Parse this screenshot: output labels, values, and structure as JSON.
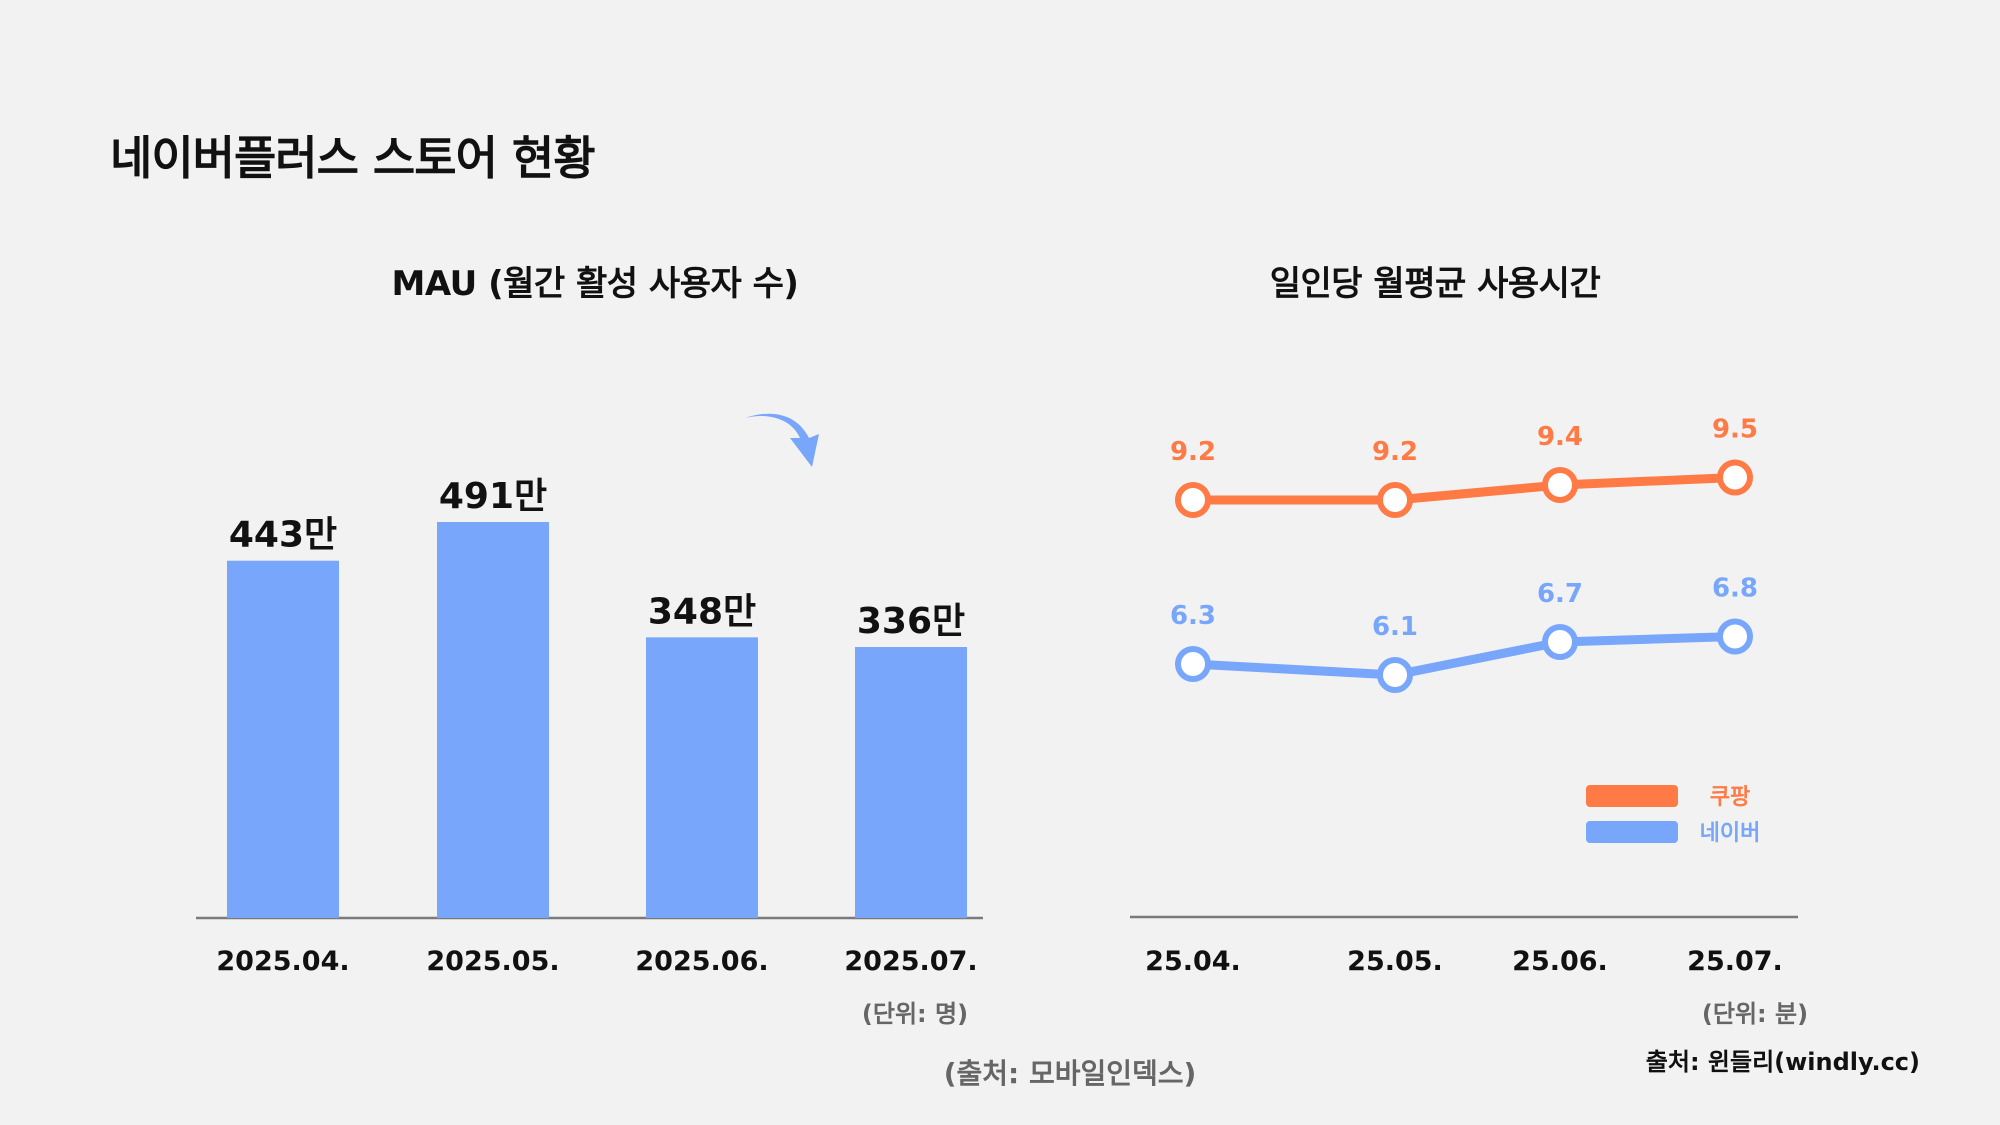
{
  "page": {
    "title": "네이버플러스 스토어 현황"
  },
  "colors": {
    "naver_blue": "#78a6fb",
    "coupang_orange": "#ff7a45",
    "axis": "#7a7a7a",
    "background": "#f2f2f2"
  },
  "chart_data": [
    {
      "type": "bar",
      "title": "MAU (월간 활성 사용자 수)",
      "categories": [
        "2025.04.",
        "2025.05.",
        "2025.06.",
        "2025.07."
      ],
      "values": [
        443,
        491,
        348,
        336
      ],
      "value_labels": [
        "443만",
        "491만",
        "348만",
        "336만"
      ],
      "unit_note": "(단위: 명)",
      "source": "(출처: 모바일인덱스)",
      "ylim": [
        0,
        520
      ],
      "annotation": "down-arrow-icon",
      "color": "#78a6fb"
    },
    {
      "type": "line",
      "title": "일인당 월평균 사용시간",
      "categories": [
        "25.04.",
        "25.05.",
        "25.06.",
        "25.07."
      ],
      "series": [
        {
          "name": "쿠팡",
          "values": [
            9.2,
            9.2,
            9.4,
            9.5
          ],
          "labels": [
            "9.2",
            "9.2",
            "9.4",
            "9.5"
          ],
          "color": "#ff7a45"
        },
        {
          "name": "네이버",
          "values": [
            6.3,
            6.1,
            6.7,
            6.8
          ],
          "labels": [
            "6.3",
            "6.1",
            "6.7",
            "6.8"
          ],
          "color": "#78a6fb"
        }
      ],
      "unit_note": "(단위: 분)",
      "source": "출처: 윈들리(windly.cc)",
      "legend": "bottom-right"
    }
  ]
}
